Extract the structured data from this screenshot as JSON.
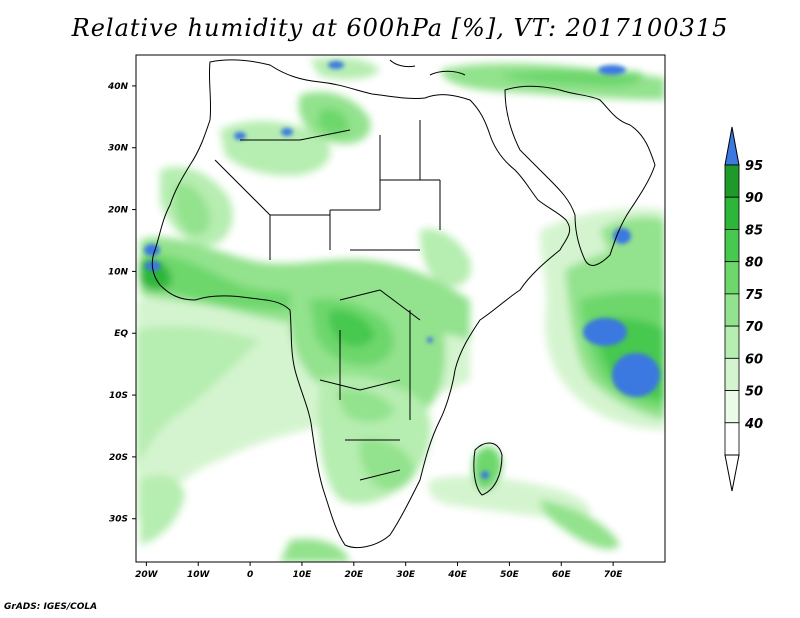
{
  "title": "Relative humidity at 600hPa [%], VT: 2017100315",
  "footer": "GrADS: IGES/COLA",
  "map": {
    "variable": "Relative humidity",
    "level": "600hPa",
    "unit": "%",
    "valid_time": "2017100315",
    "lon_range": [
      -22,
      80
    ],
    "lat_range": [
      -37,
      45
    ],
    "lat_ticks": [
      {
        "value": 40,
        "label": "40N"
      },
      {
        "value": 30,
        "label": "30N"
      },
      {
        "value": 20,
        "label": "20N"
      },
      {
        "value": 10,
        "label": "10N"
      },
      {
        "value": 0,
        "label": "EQ"
      },
      {
        "value": -10,
        "label": "10S"
      },
      {
        "value": -20,
        "label": "20S"
      },
      {
        "value": -30,
        "label": "30S"
      }
    ],
    "lon_ticks": [
      {
        "value": -20,
        "label": "20W"
      },
      {
        "value": -10,
        "label": "10W"
      },
      {
        "value": 0,
        "label": "0"
      },
      {
        "value": 10,
        "label": "10E"
      },
      {
        "value": 20,
        "label": "20E"
      },
      {
        "value": 30,
        "label": "30E"
      },
      {
        "value": 40,
        "label": "40E"
      },
      {
        "value": 50,
        "label": "50E"
      },
      {
        "value": 60,
        "label": "60E"
      },
      {
        "value": 70,
        "label": "70E"
      }
    ]
  },
  "colorbar": {
    "levels": [
      {
        "label": "95",
        "color": "#3b78e0"
      },
      {
        "label": "90",
        "color": "#1f9a2a"
      },
      {
        "label": "85",
        "color": "#2db63a"
      },
      {
        "label": "80",
        "color": "#47c84f"
      },
      {
        "label": "75",
        "color": "#6dd76c"
      },
      {
        "label": "70",
        "color": "#93e28d"
      },
      {
        "label": "60",
        "color": "#b6edb0"
      },
      {
        "label": "50",
        "color": "#d4f4cf"
      },
      {
        "label": "40",
        "color": "#eafbe7"
      }
    ],
    "top_color": "#3b78e0",
    "bottom_color": "#ffffff"
  }
}
